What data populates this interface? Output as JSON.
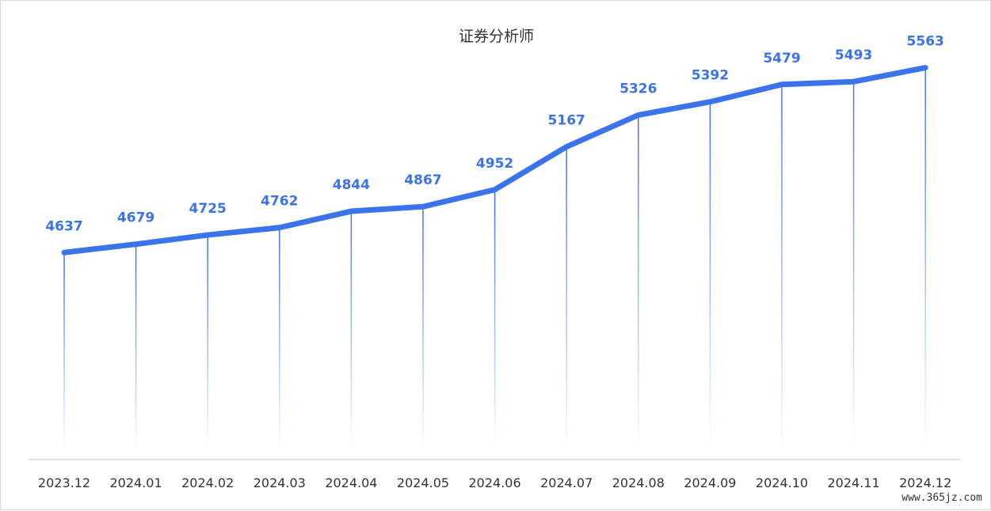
{
  "chart_data": {
    "type": "line",
    "title": "证券分析师",
    "categories": [
      "2023.12",
      "2024.01",
      "2024.02",
      "2024.03",
      "2024.04",
      "2024.05",
      "2024.06",
      "2024.07",
      "2024.08",
      "2024.09",
      "2024.10",
      "2024.11",
      "2024.12"
    ],
    "values": [
      4637,
      4679,
      4725,
      4762,
      4844,
      4867,
      4952,
      5167,
      5326,
      5392,
      5479,
      5493,
      5563
    ],
    "xlabel": "",
    "ylabel": "",
    "ylim": [
      3600,
      5700
    ],
    "grid": false,
    "legend": "none",
    "data_labels": true,
    "drop_lines": true
  },
  "colors": {
    "line": "#3b73ec",
    "label": "#3b73ec",
    "axis": "#d9d9d9"
  },
  "watermark": "www.365jz.com"
}
